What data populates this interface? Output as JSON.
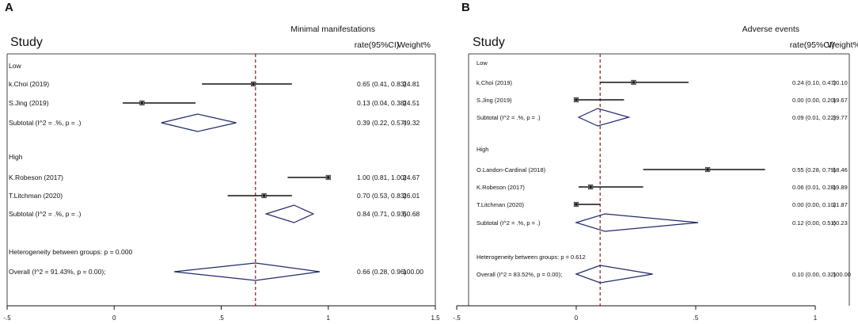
{
  "chart_data": [
    {
      "type": "forest",
      "panel_label": "A",
      "outcome_title": "Minimal manifestations",
      "col_study": "Study",
      "col_rate": "rate(95%CI)",
      "col_weight": "Weight%",
      "xlim": [
        -0.5,
        1.5
      ],
      "ticks": [
        -0.5,
        0,
        0.5,
        1,
        1.5
      ],
      "tick_labels": [
        "-.5",
        "0",
        ".5",
        "1",
        "1.5"
      ],
      "reference_line": 0.66,
      "colors": {
        "ci": "#111111",
        "diamond": "#1f2a6b",
        "ref": "#8b1a1a"
      },
      "groups": [
        {
          "name": "Low",
          "studies": [
            {
              "label": "k.Choi (2019)",
              "est": 0.65,
              "lo": 0.41,
              "hi": 0.83,
              "rate": "0.65 (0.41, 0.83)",
              "weight": "24.81"
            },
            {
              "label": "S.Jing (2019)",
              "est": 0.13,
              "lo": 0.04,
              "hi": 0.38,
              "rate": "0.13 (0.04, 0.38)",
              "weight": "24.51"
            }
          ],
          "subtotal": {
            "label": "Subtotal  (I^2 = .%, p = .)",
            "est": 0.39,
            "lo": 0.22,
            "hi": 0.57,
            "rate": "0.39 (0.22, 0.57)",
            "weight": "49.32"
          }
        },
        {
          "name": "High",
          "studies": [
            {
              "label": "K.Robeson (2017)",
              "est": 1.0,
              "lo": 0.81,
              "hi": 1.0,
              "rate": "1.00 (0.81, 1.00)",
              "weight": "24.67"
            },
            {
              "label": "T.Litchman (2020)",
              "est": 0.7,
              "lo": 0.53,
              "hi": 0.83,
              "rate": "0.70 (0.53, 0.83)",
              "weight": "26.01"
            }
          ],
          "subtotal": {
            "label": "Subtotal  (I^2 = .%, p = .)",
            "est": 0.84,
            "lo": 0.71,
            "hi": 0.93,
            "rate": "0.84 (0.71, 0.93)",
            "weight": "50.68"
          }
        }
      ],
      "heterogeneity": "Heterogeneity between groups: p = 0.000",
      "overall": {
        "label": "Overall  (I^2 = 91.43%, p = 0.00);",
        "est": 0.66,
        "lo": 0.28,
        "hi": 0.96,
        "rate": "0.66 (0.28, 0.96)",
        "weight": "100.00"
      }
    },
    {
      "type": "forest",
      "panel_label": "B",
      "outcome_title": "Adverse events",
      "col_study": "Study",
      "col_rate": "rate(95%CI)",
      "col_weight": "Weight%",
      "xlim": [
        -0.5,
        1
      ],
      "ticks": [
        -0.5,
        0,
        0.5,
        1
      ],
      "tick_labels": [
        "-.5",
        "0",
        ".5",
        "1"
      ],
      "reference_line": 0.1,
      "colors": {
        "ci": "#111111",
        "diamond": "#1f2a6b",
        "ref": "#8b1a1a"
      },
      "groups": [
        {
          "name": "Low",
          "studies": [
            {
              "label": "k.Choi (2019)",
              "est": 0.24,
              "lo": 0.1,
              "hi": 0.47,
              "rate": "0.24 (0.10, 0.47)",
              "weight": "20.10"
            },
            {
              "label": "S.Jing (2019)",
              "est": 0.0,
              "lo": 0.0,
              "hi": 0.2,
              "rate": "0.00 (0.00, 0.20)",
              "weight": "19.67"
            }
          ],
          "subtotal": {
            "label": "Subtotal  (I^2 = .%, p = .)",
            "est": 0.09,
            "lo": 0.01,
            "hi": 0.22,
            "rate": "0.09 (0.01, 0.22)",
            "weight": "39.77"
          }
        },
        {
          "name": "High",
          "studies": [
            {
              "label": "O.Landon-Cardinal (2018)",
              "est": 0.55,
              "lo": 0.28,
              "hi": 0.79,
              "rate": "0.55 (0.28, 0.79)",
              "weight": "18.46"
            },
            {
              "label": "K.Robeson (2017)",
              "est": 0.06,
              "lo": 0.01,
              "hi": 0.28,
              "rate": "0.06 (0.01, 0.28)",
              "weight": "19.89"
            },
            {
              "label": "T.Litchman (2020)",
              "est": 0.0,
              "lo": 0.0,
              "hi": 0.1,
              "rate": "0.00 (0.00, 0.10)",
              "weight": "21.87"
            }
          ],
          "subtotal": {
            "label": "Subtotal  (I^2 = .%, p = .)",
            "est": 0.12,
            "lo": 0.0,
            "hi": 0.51,
            "rate": "0.12 (0.00, 0.51)",
            "weight": "60.23"
          }
        }
      ],
      "heterogeneity": "Heterogeneity between groups: p = 0.612",
      "overall": {
        "label": "Overall  (I^2 = 83.52%, p = 0.00);",
        "est": 0.1,
        "lo": 0.0,
        "hi": 0.32,
        "rate": "0.10 (0.00, 0.32)",
        "weight": "100.00"
      }
    }
  ]
}
